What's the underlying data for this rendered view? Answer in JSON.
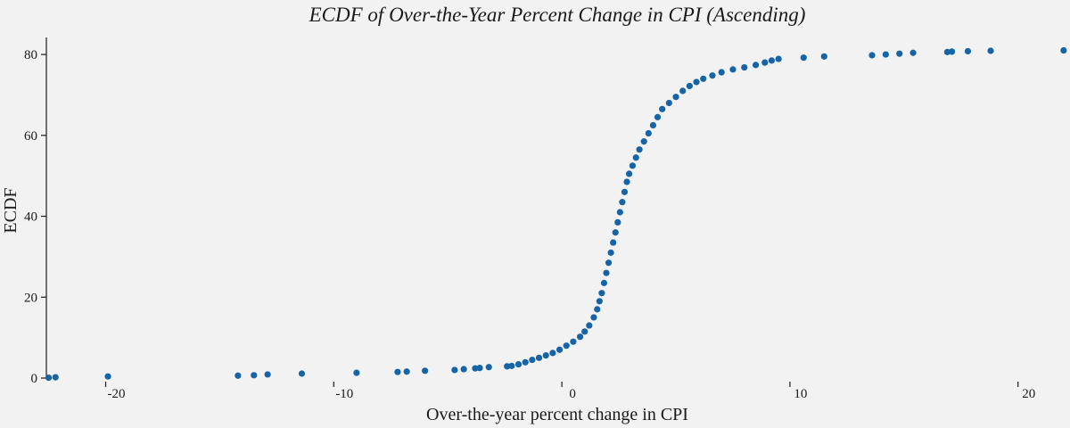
{
  "chart_data": {
    "type": "scatter",
    "title": "ECDF of Over-the-Year Percent Change in CPI (Ascending)",
    "xlabel": "Over-the-year percent change in CPI",
    "ylabel": "ECDF",
    "xlim": [
      -22.6,
      22.2
    ],
    "ylim": [
      0,
      82
    ],
    "x_ticks": [
      -20,
      -10,
      0,
      10,
      20
    ],
    "y_ticks": [
      0,
      20,
      40,
      60,
      80
    ],
    "grid": false,
    "marker_color": "#1663a5",
    "background": "#f2f2f2",
    "points": [
      [
        -22.5,
        0.1
      ],
      [
        -22.2,
        0.2
      ],
      [
        -19.9,
        0.4
      ],
      [
        -14.2,
        0.6
      ],
      [
        -13.5,
        0.7
      ],
      [
        -12.9,
        0.9
      ],
      [
        -11.4,
        1.1
      ],
      [
        -9.0,
        1.3
      ],
      [
        -7.2,
        1.5
      ],
      [
        -6.8,
        1.6
      ],
      [
        -6.0,
        1.8
      ],
      [
        -4.7,
        2.0
      ],
      [
        -4.3,
        2.2
      ],
      [
        -3.8,
        2.4
      ],
      [
        -3.6,
        2.5
      ],
      [
        -3.2,
        2.7
      ],
      [
        -2.4,
        2.9
      ],
      [
        -2.2,
        3.0
      ],
      [
        -1.9,
        3.4
      ],
      [
        -1.6,
        3.9
      ],
      [
        -1.3,
        4.5
      ],
      [
        -1.0,
        5.0
      ],
      [
        -0.7,
        5.6
      ],
      [
        -0.4,
        6.2
      ],
      [
        -0.1,
        7.0
      ],
      [
        0.2,
        8.0
      ],
      [
        0.5,
        9.0
      ],
      [
        0.8,
        10.2
      ],
      [
        1.0,
        11.5
      ],
      [
        1.2,
        13.0
      ],
      [
        1.4,
        15.0
      ],
      [
        1.55,
        17.0
      ],
      [
        1.65,
        19.0
      ],
      [
        1.75,
        21.0
      ],
      [
        1.85,
        23.5
      ],
      [
        1.95,
        26.0
      ],
      [
        2.05,
        28.5
      ],
      [
        2.15,
        31.0
      ],
      [
        2.25,
        33.5
      ],
      [
        2.35,
        36.0
      ],
      [
        2.45,
        38.5
      ],
      [
        2.55,
        41.0
      ],
      [
        2.65,
        43.5
      ],
      [
        2.75,
        46.0
      ],
      [
        2.85,
        48.5
      ],
      [
        2.95,
        50.5
      ],
      [
        3.1,
        52.5
      ],
      [
        3.25,
        54.5
      ],
      [
        3.4,
        56.5
      ],
      [
        3.6,
        58.5
      ],
      [
        3.8,
        60.5
      ],
      [
        4.0,
        62.5
      ],
      [
        4.2,
        64.5
      ],
      [
        4.4,
        66.5
      ],
      [
        4.7,
        68.0
      ],
      [
        5.0,
        69.5
      ],
      [
        5.3,
        71.0
      ],
      [
        5.6,
        72.2
      ],
      [
        5.9,
        73.2
      ],
      [
        6.2,
        74.0
      ],
      [
        6.6,
        74.8
      ],
      [
        7.0,
        75.6
      ],
      [
        7.5,
        76.3
      ],
      [
        8.0,
        76.8
      ],
      [
        8.5,
        77.4
      ],
      [
        8.9,
        78.0
      ],
      [
        9.2,
        78.5
      ],
      [
        9.5,
        78.9
      ],
      [
        10.6,
        79.2
      ],
      [
        11.5,
        79.5
      ],
      [
        13.6,
        79.8
      ],
      [
        14.2,
        80.0
      ],
      [
        14.8,
        80.2
      ],
      [
        15.4,
        80.4
      ],
      [
        16.9,
        80.6
      ],
      [
        17.1,
        80.7
      ],
      [
        17.8,
        80.8
      ],
      [
        18.8,
        80.9
      ],
      [
        22.0,
        81.0
      ]
    ]
  }
}
